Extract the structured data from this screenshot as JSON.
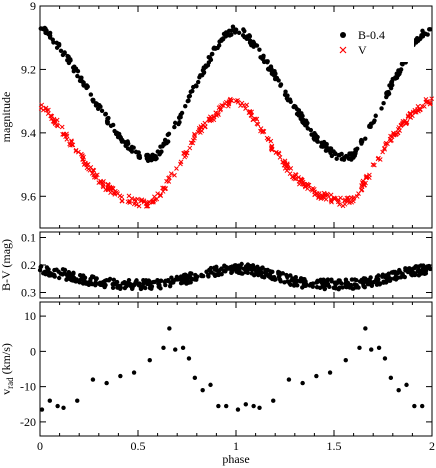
{
  "figure": {
    "xlabel": "phase",
    "x_tick_labels": [
      "0",
      "0.5",
      "1",
      "1.5",
      "2"
    ]
  },
  "colors": {
    "b_series": "#000000",
    "v_series": "#ff0000"
  },
  "chart_data": [
    {
      "type": "scatter",
      "panel": "top",
      "ylabel": "magnitude",
      "y_inverted": true,
      "xlim": [
        0,
        2
      ],
      "ylim": [
        9.0,
        9.7
      ],
      "y_ticks": [
        9.0,
        9.2,
        9.4,
        9.6
      ],
      "y_tick_labels": [
        "9",
        "9.2",
        "9.4",
        "9.6"
      ],
      "legend": {
        "placement": "top-right",
        "entries": [
          "B-0.4",
          "V"
        ]
      },
      "series": [
        {
          "name": "B-0.4",
          "marker": "filled-circle",
          "curve_x": [
            0.0,
            0.05,
            0.1,
            0.2,
            0.3,
            0.4,
            0.5,
            0.55,
            0.6,
            0.65,
            0.7,
            0.8,
            0.9,
            0.95,
            1.0,
            1.05,
            1.1,
            1.2,
            1.3,
            1.4,
            1.5,
            1.55,
            1.6,
            1.65,
            1.7,
            1.8,
            1.9,
            1.95,
            2.0
          ],
          "curve_y": [
            9.07,
            9.09,
            9.13,
            9.22,
            9.32,
            9.41,
            9.47,
            9.48,
            9.47,
            9.42,
            9.37,
            9.24,
            9.13,
            9.09,
            9.07,
            9.09,
            9.13,
            9.22,
            9.32,
            9.41,
            9.47,
            9.48,
            9.47,
            9.42,
            9.37,
            9.24,
            9.13,
            9.09,
            9.07
          ]
        },
        {
          "name": "V",
          "marker": "x-cross",
          "curve_x": [
            0.0,
            0.05,
            0.1,
            0.2,
            0.3,
            0.4,
            0.5,
            0.55,
            0.6,
            0.65,
            0.7,
            0.8,
            0.9,
            0.95,
            1.0,
            1.05,
            1.1,
            1.2,
            1.3,
            1.4,
            1.5,
            1.55,
            1.6,
            1.65,
            1.7,
            1.8,
            1.9,
            1.95,
            2.0
          ],
          "curve_y": [
            9.32,
            9.34,
            9.38,
            9.47,
            9.55,
            9.6,
            9.62,
            9.62,
            9.6,
            9.56,
            9.51,
            9.4,
            9.34,
            9.31,
            9.3,
            9.32,
            9.36,
            9.46,
            9.54,
            9.59,
            9.61,
            9.62,
            9.61,
            9.56,
            9.51,
            9.41,
            9.34,
            9.31,
            9.3
          ]
        }
      ]
    },
    {
      "type": "scatter",
      "panel": "middle",
      "ylabel": "B-V (mag)",
      "y_inverted": true,
      "xlim": [
        0,
        2
      ],
      "ylim": [
        0.08,
        0.32
      ],
      "y_ticks": [
        0.1,
        0.2,
        0.3
      ],
      "y_tick_labels": [
        "0.1",
        "0.2",
        "0.3"
      ],
      "series": [
        {
          "marker": "filled-circle",
          "curve_x": [
            0.0,
            0.1,
            0.2,
            0.3,
            0.4,
            0.5,
            0.6,
            0.7,
            0.8,
            0.9,
            1.0,
            1.1,
            1.2,
            1.3,
            1.4,
            1.5,
            1.6,
            1.7,
            1.8,
            1.9,
            2.0
          ],
          "curve_y": [
            0.22,
            0.23,
            0.25,
            0.26,
            0.27,
            0.27,
            0.27,
            0.26,
            0.24,
            0.22,
            0.21,
            0.22,
            0.24,
            0.26,
            0.27,
            0.27,
            0.27,
            0.26,
            0.24,
            0.22,
            0.22
          ]
        }
      ]
    },
    {
      "type": "scatter",
      "panel": "bottom",
      "ylabel": "v_rad (km/s)",
      "xlim": [
        0,
        2
      ],
      "ylim": [
        -24,
        14
      ],
      "y_ticks": [
        -20,
        -10,
        0,
        10
      ],
      "y_tick_labels": [
        "-20",
        "-10",
        "0",
        "10"
      ],
      "series": [
        {
          "marker": "filled-circle",
          "x": [
            0.01,
            0.05,
            0.09,
            0.12,
            0.19,
            0.27,
            0.34,
            0.41,
            0.48,
            0.56,
            0.63,
            0.66,
            0.69,
            0.73,
            0.76,
            0.79,
            0.83,
            0.87,
            0.91,
            0.95,
            1.01,
            1.05,
            1.09,
            1.12,
            1.19,
            1.27,
            1.34,
            1.41,
            1.48,
            1.56,
            1.63,
            1.66,
            1.69,
            1.73,
            1.76,
            1.79,
            1.83,
            1.87,
            1.91,
            1.95
          ],
          "y": [
            -16.5,
            -14,
            -15.5,
            -16,
            -14,
            -8,
            -9,
            -7,
            -6,
            -2.5,
            1,
            6.5,
            0.5,
            1,
            -2,
            -7.5,
            -11,
            -9.5,
            -15.5,
            -15.5,
            -16.5,
            -15,
            -15.5,
            -16,
            -14,
            -8,
            -9,
            -7,
            -6,
            -2.5,
            1,
            6.5,
            0.5,
            1,
            -2,
            -7.5,
            -11,
            -9.5,
            -15.5,
            -15.5
          ]
        }
      ]
    }
  ]
}
